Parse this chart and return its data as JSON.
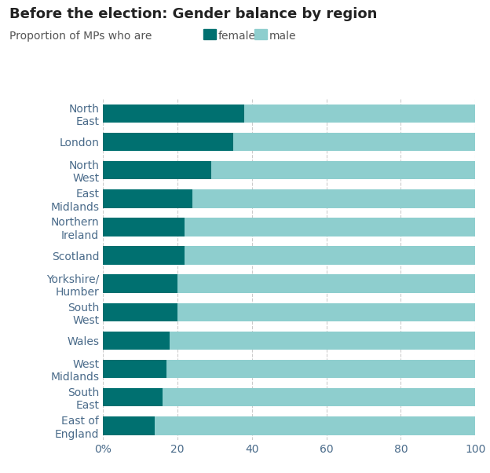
{
  "title": "Before the election: Gender balance by region",
  "subtitle": "Proportion of MPs who are",
  "legend_female": "female",
  "legend_male": "male",
  "regions": [
    "North\nEast",
    "London",
    "North\nWest",
    "East\nMidlands",
    "Northern\nIreland",
    "Scotland",
    "Yorkshire/\nHumber",
    "South\nWest",
    "Wales",
    "West\nMidlands",
    "South\nEast",
    "East of\nEngland"
  ],
  "female_pct": [
    38,
    35,
    29,
    24,
    22,
    22,
    20,
    20,
    18,
    17,
    16,
    14
  ],
  "color_female": "#007070",
  "color_male": "#8ECECE",
  "background_color": "#ffffff",
  "title_color": "#222222",
  "label_color": "#4A6B8A",
  "subtitle_color": "#555555",
  "axis_color": "#cccccc",
  "title_fontsize": 13,
  "subtitle_fontsize": 10,
  "label_fontsize": 10,
  "tick_fontsize": 10,
  "xlim": [
    0,
    100
  ],
  "bar_height": 0.65
}
